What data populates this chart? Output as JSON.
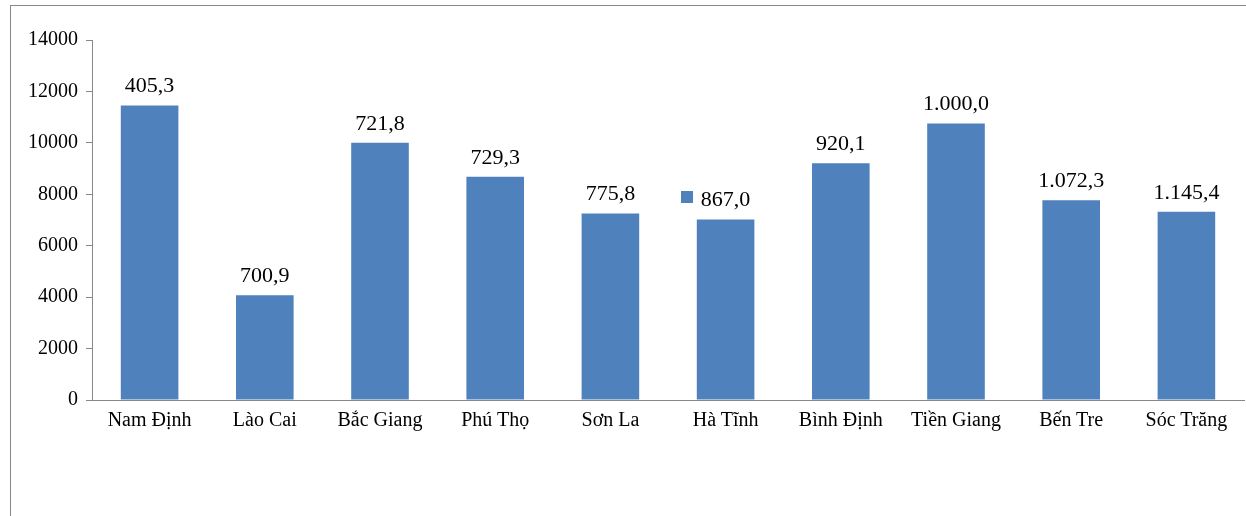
{
  "chart_data": {
    "type": "bar",
    "categories": [
      "Nam Định",
      "Lào Cai",
      "Bắc Giang",
      "Phú Thọ",
      "Sơn La",
      "Hà Tĩnh",
      "Bình Định",
      "Tiền Giang",
      "Bến Tre",
      "Sóc Trăng"
    ],
    "values": [
      11450,
      4070,
      10000,
      8680,
      7250,
      7020,
      9210,
      10750,
      7770,
      7320
    ],
    "annotations": [
      {
        "text": "405,3",
        "x": "Nam Định",
        "y": 11450
      },
      {
        "text": "700,9",
        "x": "Lào Cai",
        "y": 4070
      },
      {
        "text": "721,8",
        "x": "Bắc Giang",
        "y": 10000
      },
      {
        "text": "729,3",
        "x": "Phú Thọ",
        "y": 8680
      },
      {
        "text": "775,8",
        "x": "Sơn La",
        "y": 7250
      },
      {
        "text": "867,0",
        "x": "Hà Tĩnh",
        "y": 7020
      },
      {
        "text": "920,1",
        "x": "Bình Định",
        "y": 9210
      },
      {
        "text": "1.000,0",
        "x": "Tiền Giang",
        "y": 10750
      },
      {
        "text": "1.072,3",
        "x": "Bến Tre",
        "y": 7770
      },
      {
        "text": "1.145,4",
        "x": "Sóc Trăng",
        "y": 7320
      }
    ],
    "color": "#4f81bd",
    "ylim": [
      0,
      14000
    ],
    "yticks": [
      0,
      2000,
      4000,
      6000,
      8000,
      10000,
      12000,
      14000
    ],
    "grid": false,
    "legend": false
  }
}
